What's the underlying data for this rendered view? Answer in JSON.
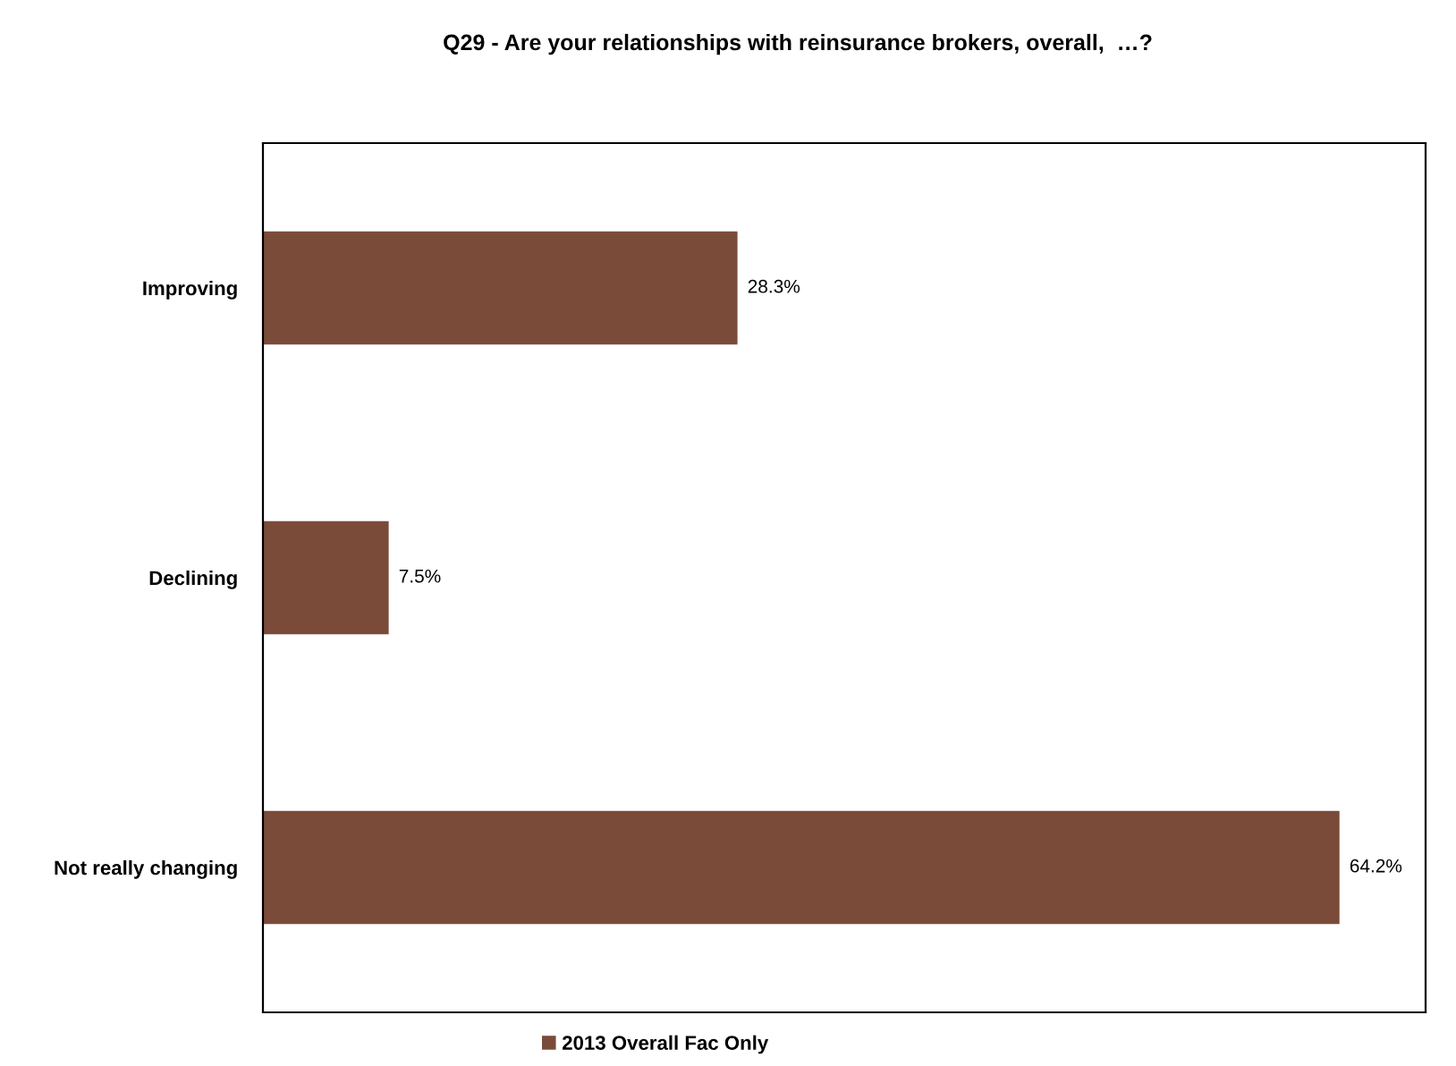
{
  "chart_data": {
    "type": "bar",
    "orientation": "horizontal",
    "title": "Q29 - Are your relationships with reinsurance brokers, overall,  …?",
    "categories": [
      "Improving",
      "Declining",
      "Not really changing"
    ],
    "series": [
      {
        "name": "2013 Overall Fac Only",
        "color": "#7b4b3a",
        "values": [
          28.3,
          7.5,
          64.2
        ],
        "value_labels": [
          "28.3%",
          "7.5%",
          "64.2%"
        ]
      }
    ],
    "legend": "bottom",
    "grid": false
  }
}
